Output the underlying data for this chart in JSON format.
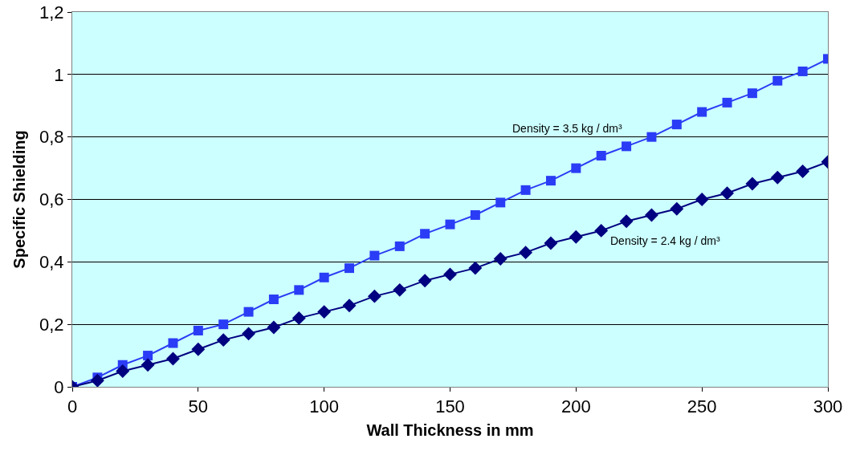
{
  "chart_data": {
    "type": "line",
    "xlabel": "Wall Thickness in mm",
    "ylabel": "Specific Shielding",
    "x": [
      0,
      10,
      20,
      30,
      40,
      50,
      60,
      70,
      80,
      90,
      100,
      110,
      120,
      130,
      140,
      150,
      160,
      170,
      180,
      190,
      200,
      210,
      220,
      230,
      240,
      250,
      260,
      270,
      280,
      290,
      300
    ],
    "series": [
      {
        "color": "#2a3cf5",
        "marker": "square",
        "values": [
          0,
          0.03,
          0.07,
          0.1,
          0.14,
          0.18,
          0.2,
          0.24,
          0.28,
          0.31,
          0.35,
          0.38,
          0.42,
          0.45,
          0.49,
          0.52,
          0.55,
          0.59,
          0.63,
          0.66,
          0.7,
          0.74,
          0.77,
          0.8,
          0.84,
          0.88,
          0.91,
          0.94,
          0.98,
          1.01,
          1.05
        ]
      },
      {
        "color": "#000080",
        "marker": "diamond",
        "values": [
          0,
          0.02,
          0.05,
          0.07,
          0.09,
          0.12,
          0.15,
          0.17,
          0.19,
          0.22,
          0.24,
          0.26,
          0.29,
          0.31,
          0.34,
          0.36,
          0.38,
          0.41,
          0.43,
          0.46,
          0.48,
          0.5,
          0.53,
          0.55,
          0.57,
          0.6,
          0.62,
          0.65,
          0.67,
          0.69,
          0.72
        ]
      }
    ],
    "annotations": [
      "Density = 3.5 kg / dm³",
      "Density = 2.4 kg / dm³"
    ],
    "xlim": [
      0,
      300
    ],
    "xticks": [
      0,
      50,
      100,
      150,
      200,
      250,
      300
    ],
    "ylim": [
      0,
      1.2
    ],
    "yticks": [
      0,
      {
        "value": 0.2,
        "label": "0,2"
      },
      {
        "value": 0.4,
        "label": "0,4"
      },
      {
        "value": 0.6,
        "label": "0,6"
      },
      {
        "value": 0.8,
        "label": "0,8"
      },
      1,
      {
        "value": 1.2,
        "label": "1,2"
      }
    ],
    "grid": "y",
    "line_style": "solid"
  }
}
